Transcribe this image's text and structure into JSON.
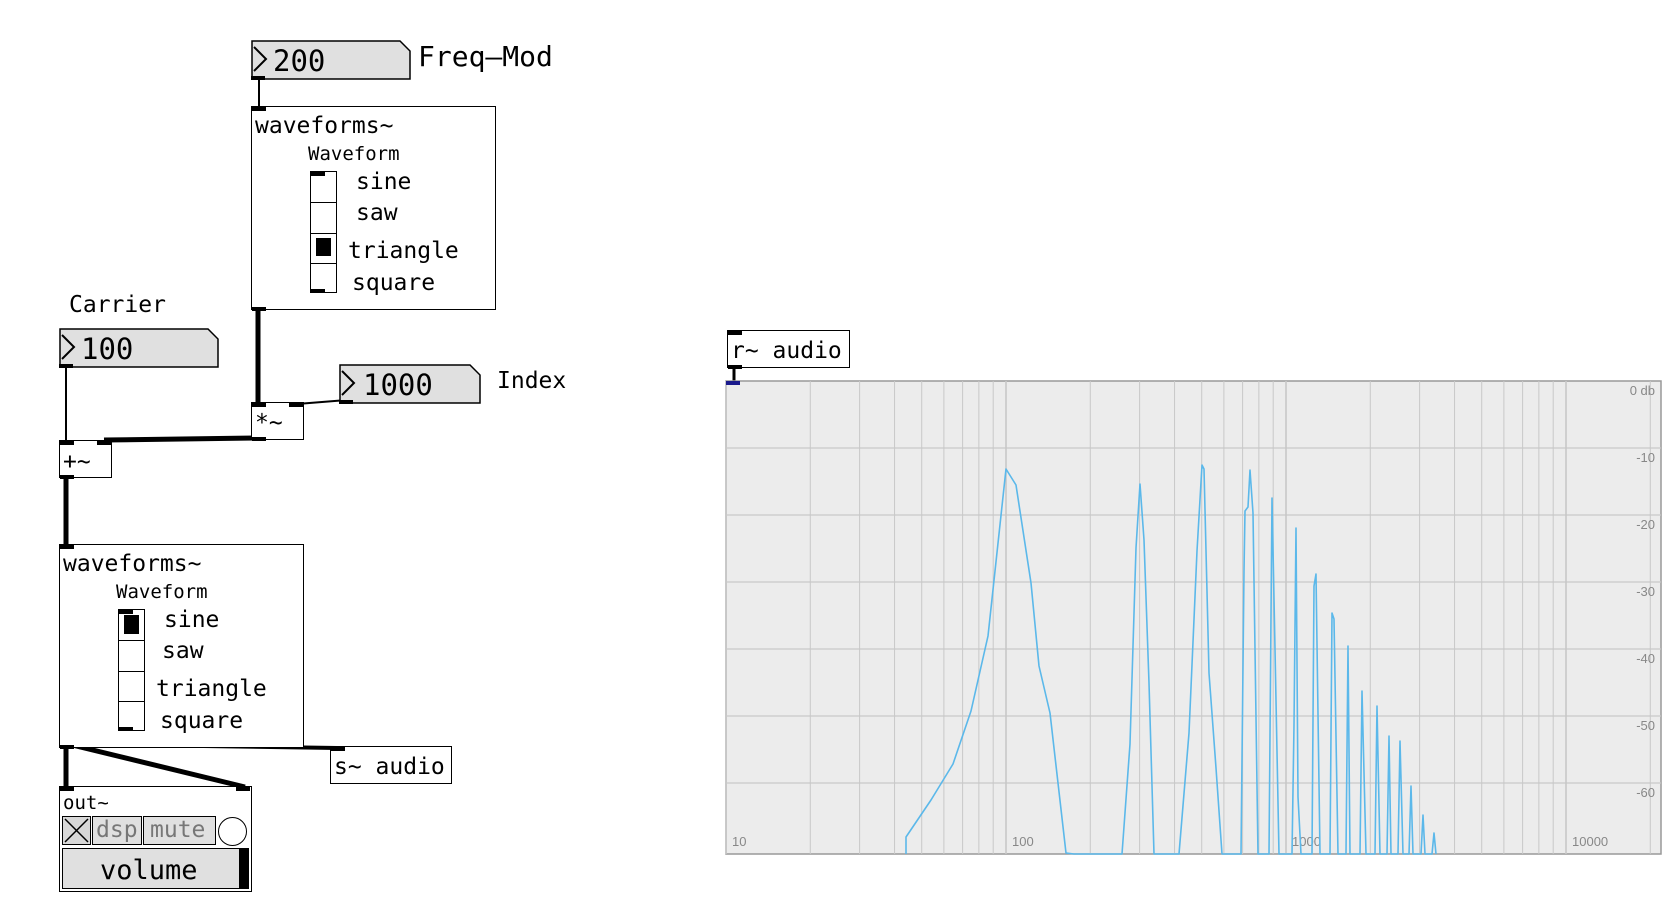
{
  "freq_mod": {
    "value": "200",
    "label": "Freq—Mod"
  },
  "carrier": {
    "value": "100",
    "label": "Carrier"
  },
  "index": {
    "value": "1000",
    "label": "Index"
  },
  "top_waveforms": {
    "title": "waveforms~",
    "heading": "Waveform",
    "options": [
      "sine",
      "saw",
      "triangle",
      "square"
    ],
    "selected": "triangle"
  },
  "bottom_waveforms": {
    "title": "waveforms~",
    "heading": "Waveform",
    "options": [
      "sine",
      "saw",
      "triangle",
      "square"
    ],
    "selected": "sine"
  },
  "multiply_object": "*~",
  "add_object": "+~",
  "send_object": "s~ audio",
  "receive_object": "r~ audio",
  "out_module": {
    "title": "out~",
    "dsp_label": "dsp",
    "mute_label": "mute",
    "volume_label": "volume"
  },
  "spectrum": {
    "db_labels": [
      "0 db",
      "-10",
      "-20",
      "-30",
      "-40",
      "-50",
      "-60"
    ],
    "freq_labels": [
      "10",
      "100",
      "1000",
      "10000"
    ],
    "trace_color": "#5bb8ea",
    "background_color": "#ececec",
    "grid_color": "#c8c8c8"
  }
}
